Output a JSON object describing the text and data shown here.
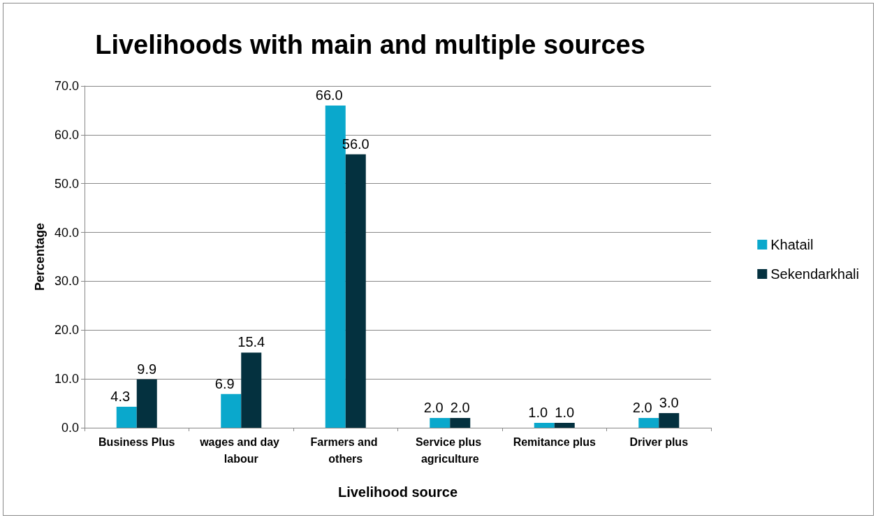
{
  "chart_data": {
    "type": "bar",
    "title": "Livelihoods with main and multiple sources",
    "xlabel": "Livelihood source",
    "ylabel": "Percentage",
    "categories": [
      "Business Plus",
      "wages and day labour",
      "Farmers and others",
      "Service plus agriculture",
      "Remitance plus",
      "Driver plus"
    ],
    "series": [
      {
        "name": "Khatail",
        "color": "#0aa8cc",
        "values": [
          4.3,
          6.9,
          66.0,
          2.0,
          1.0,
          2.0
        ],
        "value_labels": [
          "4.3",
          "6.9",
          "66.0",
          "2.0",
          "1.0",
          "2.0"
        ]
      },
      {
        "name": "Sekendarkhali",
        "color": "#04313f",
        "values": [
          9.9,
          15.4,
          56.0,
          2.0,
          1.0,
          3.0
        ],
        "value_labels": [
          "9.9",
          "15.4",
          "56.0",
          "2.0",
          "1.0",
          "3.0"
        ]
      }
    ],
    "ylim": [
      0,
      70
    ],
    "yticks": [
      "0.0",
      "10.0",
      "20.0",
      "30.0",
      "40.0",
      "50.0",
      "60.0",
      "70.0"
    ],
    "grid": "y",
    "legend": "right"
  }
}
